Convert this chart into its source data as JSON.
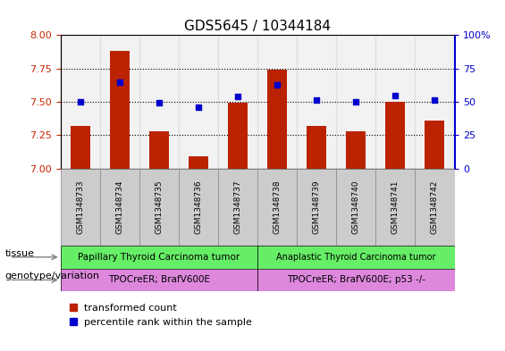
{
  "title": "GDS5645 / 10344184",
  "samples": [
    "GSM1348733",
    "GSM1348734",
    "GSM1348735",
    "GSM1348736",
    "GSM1348737",
    "GSM1348738",
    "GSM1348739",
    "GSM1348740",
    "GSM1348741",
    "GSM1348742"
  ],
  "transformed_counts": [
    7.32,
    7.88,
    7.28,
    7.09,
    7.49,
    7.74,
    7.32,
    7.28,
    7.5,
    7.36
  ],
  "percentile_ranks": [
    50,
    65,
    49,
    46,
    54,
    63,
    51,
    50,
    55,
    51
  ],
  "ylim_left": [
    7.0,
    8.0
  ],
  "ylim_right": [
    0,
    100
  ],
  "yticks_left": [
    7.0,
    7.25,
    7.5,
    7.75,
    8.0
  ],
  "yticks_right": [
    0,
    25,
    50,
    75,
    100
  ],
  "grid_values": [
    7.25,
    7.5,
    7.75
  ],
  "bar_color": "#bb2200",
  "dot_color": "#0000cc",
  "tissue_labels": [
    "Papillary Thyroid Carcinoma tumor",
    "Anaplastic Thyroid Carcinoma tumor"
  ],
  "tissue_colors": [
    "#66ee66",
    "#66ee66"
  ],
  "genotype_labels": [
    "TPOCreER; BrafV600E",
    "TPOCreER; BrafV600E; p53 -/-"
  ],
  "genotype_colors": [
    "#dd88dd",
    "#dd88dd"
  ],
  "tick_label_color_left": "#cc2200",
  "tick_label_color_right": "#0000cc",
  "legend_bar_label": "transformed count",
  "legend_dot_label": "percentile rank within the sample",
  "tissue_row_label": "tissue",
  "geno_row_label": "genotype/variation"
}
